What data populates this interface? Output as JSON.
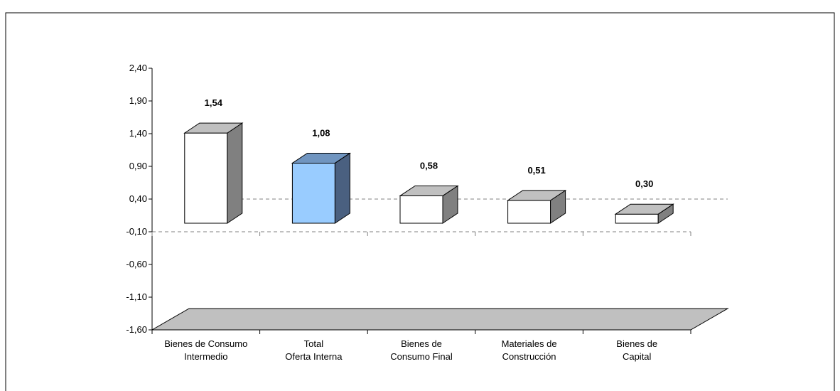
{
  "chart_data": {
    "type": "bar",
    "title": "",
    "xlabel": "",
    "ylabel": "",
    "categories": [
      [
        "Bienes de Consumo",
        "Intermedio"
      ],
      [
        "Total",
        "Oferta Interna"
      ],
      [
        "Bienes de",
        "Consumo Final"
      ],
      [
        "Materiales de",
        "Construcción"
      ],
      [
        "Bienes de",
        "Capital"
      ]
    ],
    "values": [
      1.54,
      1.08,
      0.58,
      0.51,
      0.3
    ],
    "data_labels": [
      "1,54",
      "1,08",
      "0,58",
      "0,51",
      "0,30"
    ],
    "y_ticks": [
      2.4,
      1.9,
      1.4,
      0.9,
      0.4,
      -0.1,
      -0.6,
      -1.1,
      -1.6
    ],
    "y_tick_labels": [
      "2,40",
      "1,90",
      "1,40",
      "0,90",
      "0,40",
      "-0,10",
      "-0,60",
      "-1,10",
      "-1,60"
    ],
    "ylim": [
      -1.6,
      2.4
    ],
    "bar_colors": [
      "#ffffff",
      "#99ccff",
      "#ffffff",
      "#ffffff",
      "#ffffff"
    ],
    "bar_side_colors": [
      "#808080",
      "#4a6080",
      "#808080",
      "#808080",
      "#808080"
    ],
    "bar_top_colors": [
      "#c0c0c0",
      "#7095c0",
      "#c0c0c0",
      "#c0c0c0",
      "#c0c0c0"
    ],
    "floor_color": "#c0c0c0",
    "grid": true,
    "legend": "none"
  }
}
